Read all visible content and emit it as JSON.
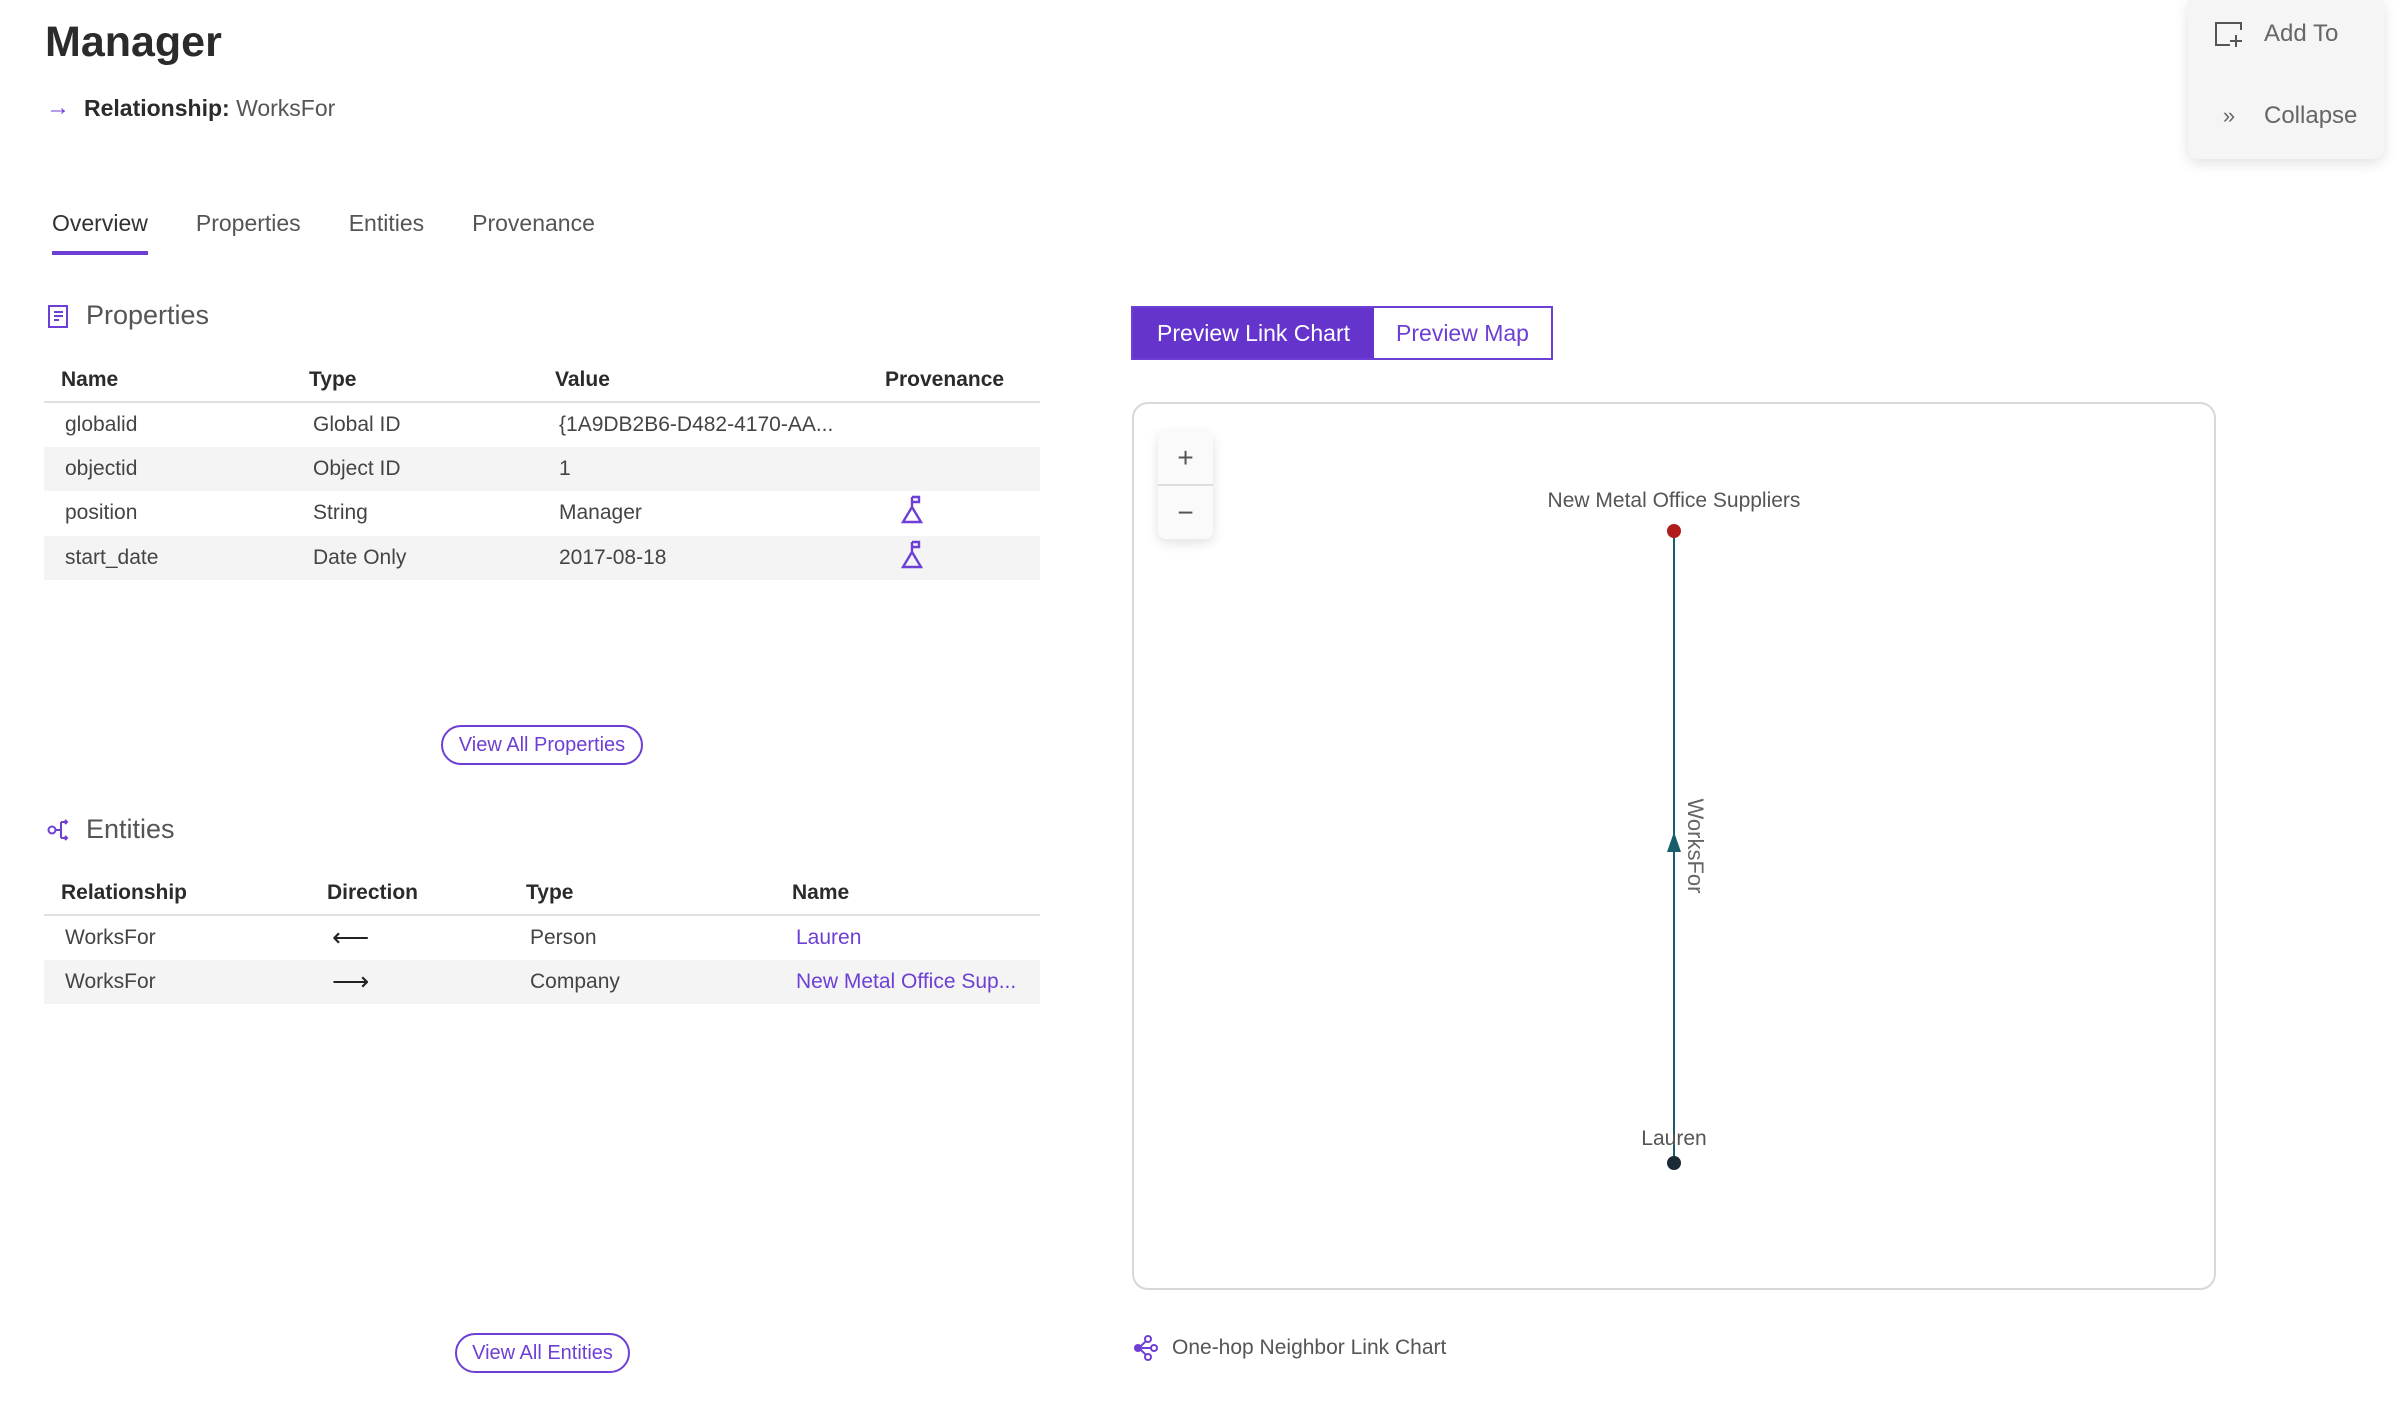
{
  "header": {
    "title": "Manager",
    "relationship_label": "Relationship:",
    "relationship_value": "WorksFor"
  },
  "tabs": [
    {
      "label": "Overview",
      "active": true
    },
    {
      "label": "Properties"
    },
    {
      "label": "Entities"
    },
    {
      "label": "Provenance"
    }
  ],
  "properties": {
    "heading": "Properties",
    "columns": [
      "Name",
      "Type",
      "Value",
      "Provenance"
    ],
    "rows": [
      {
        "name": "globalid",
        "type": "Global ID",
        "value": "{1A9DB2B6-D482-4170-AA...",
        "provenance": false
      },
      {
        "name": "objectid",
        "type": "Object ID",
        "value": "1",
        "provenance": false
      },
      {
        "name": "position",
        "type": "String",
        "value": "Manager",
        "provenance": true
      },
      {
        "name": "start_date",
        "type": "Date Only",
        "value": "2017-08-18",
        "provenance": true
      }
    ],
    "view_all": "View All Properties"
  },
  "entities": {
    "heading": "Entities",
    "columns": [
      "Relationship",
      "Direction",
      "Type",
      "Name"
    ],
    "rows": [
      {
        "relationship": "WorksFor",
        "direction": "⟵",
        "type": "Person",
        "name": "Lauren"
      },
      {
        "relationship": "WorksFor",
        "direction": "⟶",
        "type": "Company",
        "name": "New Metal Office Sup..."
      }
    ],
    "view_all": "View All Entities"
  },
  "preview": {
    "link_chart_label": "Preview Link Chart",
    "map_label": "Preview Map",
    "active": "link_chart",
    "zoom_in": "+",
    "zoom_out": "−",
    "nodes": [
      {
        "label": "New Metal Office Suppliers",
        "color": "#b01c1c"
      },
      {
        "label": "Lauren",
        "color": "#1b2a35"
      }
    ],
    "edge": {
      "label": "WorksFor",
      "from": "Lauren",
      "to": "New Metal Office Suppliers",
      "color": "#155e6a"
    },
    "footer": "One-hop Neighbor Link Chart"
  },
  "side_panel": {
    "add_to": "Add To",
    "collapse": "Collapse"
  },
  "colors": {
    "accent": "#6e3fd4",
    "accent_dark": "#6434cc"
  }
}
